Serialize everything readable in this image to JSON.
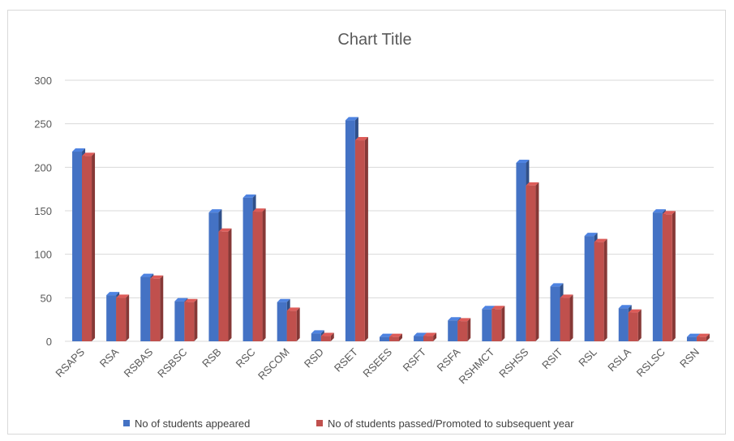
{
  "chart_data": {
    "type": "bar",
    "title": "Chart Title",
    "xlabel": "",
    "ylabel": "",
    "ylim": [
      0,
      300
    ],
    "yticks": [
      0,
      50,
      100,
      150,
      200,
      250,
      300
    ],
    "grid": true,
    "legend_position": "bottom",
    "categories": [
      "RSAPS",
      "RSA",
      "RSBAS",
      "RSBSC",
      "RSB",
      "RSC",
      "RSCOM",
      "RSD",
      "RSET",
      "RSEES",
      "RSFT",
      "RSFA",
      "RSHMCT",
      "RSHSS",
      "RSIT",
      "RSL",
      "RSLA",
      "RSLSC",
      "RSN"
    ],
    "series": [
      {
        "name": "No of students appeared",
        "color": "#4472c4",
        "values": [
          218,
          53,
          74,
          46,
          148,
          165,
          45,
          9,
          254,
          5,
          6,
          24,
          37,
          205,
          63,
          121,
          38,
          148,
          5
        ]
      },
      {
        "name": "No of students passed/Promoted to subsequent year",
        "color": "#c0504d",
        "values": [
          213,
          50,
          72,
          45,
          126,
          149,
          35,
          6,
          231,
          5,
          6,
          23,
          37,
          179,
          50,
          114,
          33,
          146,
          5
        ]
      }
    ]
  }
}
